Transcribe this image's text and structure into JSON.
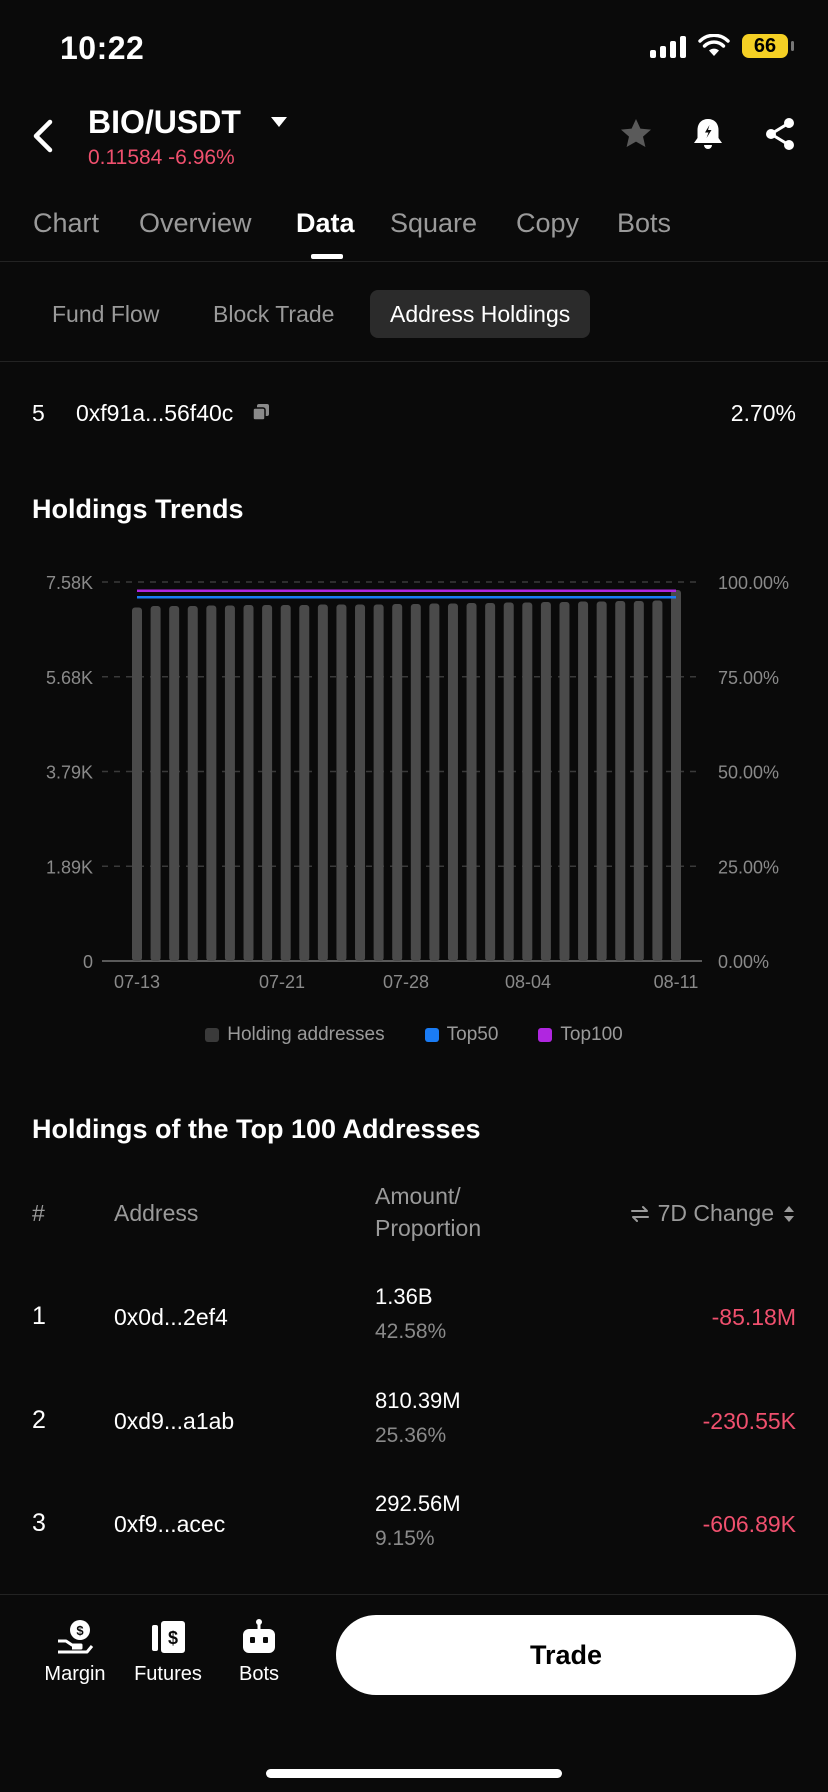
{
  "status_bar": {
    "time": "10:22",
    "battery": "66",
    "icons": [
      "signal-icon",
      "wifi-icon",
      "battery-icon"
    ]
  },
  "header": {
    "pair": "BIO/USDT",
    "price_change": "0.11584 -6.96%",
    "price_color": "#f0506e",
    "icons": [
      "back-icon",
      "caret-down-icon",
      "star-icon",
      "bell-icon",
      "share-icon"
    ]
  },
  "tabs": [
    {
      "label": "Chart",
      "active": false
    },
    {
      "label": "Overview",
      "active": false
    },
    {
      "label": "Data",
      "active": true
    },
    {
      "label": "Square",
      "active": false
    },
    {
      "label": "Copy",
      "active": false
    },
    {
      "label": "Bots",
      "active": false
    }
  ],
  "sub_tabs": [
    {
      "label": "Fund Flow",
      "active": false
    },
    {
      "label": "Block Trade",
      "active": false
    },
    {
      "label": "Address Holdings",
      "active": true
    }
  ],
  "rank_row": {
    "rank": "5",
    "address": "0xf91a...56f40c",
    "percent": "2.70%"
  },
  "holdings_trends": {
    "title": "Holdings Trends"
  },
  "chart_data": {
    "type": "bar",
    "title": "Holdings Trends",
    "x_tick_labels": [
      "07-13",
      "07-21",
      "07-28",
      "08-04",
      "08-11"
    ],
    "left_axis_ticks": [
      "0",
      "1.89K",
      "3.79K",
      "5.68K",
      "7.58K"
    ],
    "right_axis_ticks": [
      "0.00%",
      "25.00%",
      "50.00%",
      "75.00%",
      "100.00%"
    ],
    "ylim_left": [
      0,
      7580
    ],
    "ylim_right": [
      0,
      100
    ],
    "grid": "dashed horizontal",
    "legend_position": "bottom",
    "series": [
      {
        "name": "Holding addresses",
        "type": "bar",
        "axis": "left",
        "color": "#4a4a4a",
        "values": [
          7070,
          7100,
          7100,
          7100,
          7110,
          7110,
          7120,
          7120,
          7120,
          7120,
          7130,
          7130,
          7130,
          7130,
          7140,
          7140,
          7150,
          7150,
          7160,
          7160,
          7170,
          7170,
          7180,
          7180,
          7190,
          7190,
          7200,
          7200,
          7210,
          7420
        ]
      },
      {
        "name": "Top50",
        "type": "line",
        "axis": "right",
        "color": "#1a7cf5",
        "values": [
          96.0,
          96.0,
          96.0,
          96.0,
          96.0,
          96.0,
          96.0,
          96.0,
          96.0,
          96.0,
          96.0,
          96.0,
          96.0,
          96.0,
          96.0,
          96.0,
          96.0,
          96.0,
          96.0,
          96.0,
          96.0,
          96.0,
          96.0,
          96.0,
          96.0,
          96.0,
          96.0,
          96.0,
          96.0,
          96.0
        ]
      },
      {
        "name": "Top100",
        "type": "line",
        "axis": "right",
        "color": "#b026e0",
        "values": [
          97.7,
          97.7,
          97.7,
          97.7,
          97.7,
          97.7,
          97.7,
          97.7,
          97.7,
          97.7,
          97.7,
          97.7,
          97.7,
          97.7,
          97.7,
          97.7,
          97.7,
          97.7,
          97.7,
          97.7,
          97.7,
          97.7,
          97.7,
          97.7,
          97.7,
          97.7,
          97.7,
          97.7,
          97.7,
          97.7
        ]
      }
    ]
  },
  "top100": {
    "title": "Holdings of the Top 100 Addresses",
    "headers": {
      "num": "#",
      "address": "Address",
      "amount": "Amount/ Proportion",
      "change": "7D Change"
    },
    "rows": [
      {
        "num": "1",
        "address": "0x0d...2ef4",
        "amount": "1.36B",
        "proportion": "42.58%",
        "change": "-85.18M"
      },
      {
        "num": "2",
        "address": "0xd9...a1ab",
        "amount": "810.39M",
        "proportion": "25.36%",
        "change": "-230.55K"
      },
      {
        "num": "3",
        "address": "0xf9...acec",
        "amount": "292.56M",
        "proportion": "9.15%",
        "change": "-606.89K"
      }
    ]
  },
  "bottom_bar": {
    "items": [
      {
        "label": "Margin",
        "icon": "margin-icon"
      },
      {
        "label": "Futures",
        "icon": "futures-icon"
      },
      {
        "label": "Bots",
        "icon": "bots-icon"
      }
    ],
    "trade_label": "Trade"
  }
}
